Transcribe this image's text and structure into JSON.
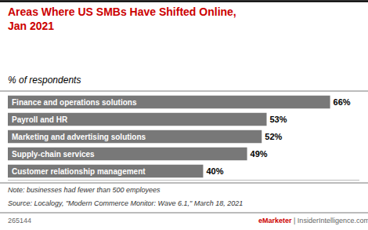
{
  "chart_data": {
    "type": "bar",
    "orientation": "horizontal",
    "title": "Areas Where US SMBs Have Shifted Online,\nJan 2021",
    "subtitle": "% of respondents",
    "categories": [
      "Finance and operations solutions",
      "Payroll and HR",
      "Marketing and advertising solutions",
      "Supply-chain services",
      "Customer relationship management"
    ],
    "values": [
      66,
      53,
      52,
      49,
      40
    ],
    "value_labels": [
      "66%",
      "53%",
      "52%",
      "49%",
      "40%"
    ],
    "color": "#787878",
    "xlim": [
      0,
      72
    ],
    "data_labels": true,
    "tick_labels": false,
    "grid": false,
    "annotations": [
      "Note: businesses had fewer than 500 employees",
      "Source: Localogy, \"Modern Commerce Monitor: Wave 6.1,\" March 18, 2021",
      "265144",
      "eMarketer",
      " | InsiderIntelligence.com"
    ]
  }
}
